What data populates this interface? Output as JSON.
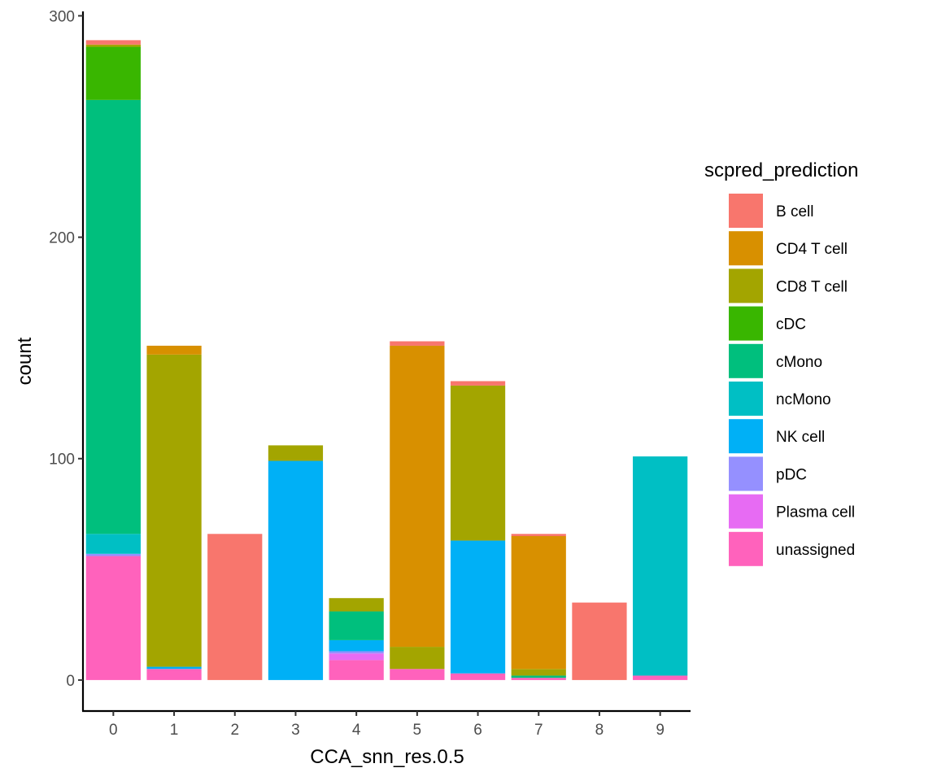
{
  "chart_data": {
    "type": "bar",
    "stacked": true,
    "title": "",
    "xlabel": "CCA_snn_res.0.5",
    "ylabel": "count",
    "ylim": [
      -14,
      302
    ],
    "y_ticks": [
      0,
      100,
      200,
      300
    ],
    "grid": false,
    "legend_position": "right",
    "legend_title": "scpred_prediction",
    "categories": [
      "0",
      "1",
      "2",
      "3",
      "4",
      "5",
      "6",
      "7",
      "8",
      "9"
    ],
    "series": [
      {
        "name": "B cell",
        "color": "#F8766D",
        "values": [
          2,
          0,
          66,
          0,
          0,
          2,
          2,
          1,
          35,
          0
        ]
      },
      {
        "name": "CD4 T cell",
        "color": "#D89000",
        "values": [
          0,
          4,
          0,
          0,
          0,
          136,
          0,
          60,
          0,
          0
        ]
      },
      {
        "name": "CD8 T cell",
        "color": "#A3A500",
        "values": [
          1,
          141,
          0,
          7,
          6,
          10,
          70,
          3,
          0,
          0
        ]
      },
      {
        "name": "cDC",
        "color": "#39B600",
        "values": [
          24,
          0,
          0,
          0,
          0,
          0,
          0,
          0,
          0,
          0
        ]
      },
      {
        "name": "cMono",
        "color": "#00BF7D",
        "values": [
          196,
          0,
          0,
          0,
          13,
          0,
          0,
          1,
          0,
          0
        ]
      },
      {
        "name": "ncMono",
        "color": "#00BFC4",
        "values": [
          9,
          0,
          0,
          0,
          0,
          0,
          0,
          0,
          0,
          99
        ]
      },
      {
        "name": "NK cell",
        "color": "#00B0F6",
        "values": [
          0,
          1,
          0,
          99,
          5,
          0,
          60,
          0,
          0,
          0
        ]
      },
      {
        "name": "pDC",
        "color": "#9590FF",
        "values": [
          1,
          0,
          0,
          0,
          1,
          0,
          0,
          0,
          0,
          0
        ]
      },
      {
        "name": "Plasma cell",
        "color": "#E76BF3",
        "values": [
          0,
          0,
          0,
          0,
          3,
          0,
          0,
          0,
          0,
          0
        ]
      },
      {
        "name": "unassigned",
        "color": "#FF62BC",
        "values": [
          56,
          5,
          0,
          0,
          9,
          5,
          3,
          1,
          0,
          2
        ]
      }
    ]
  }
}
